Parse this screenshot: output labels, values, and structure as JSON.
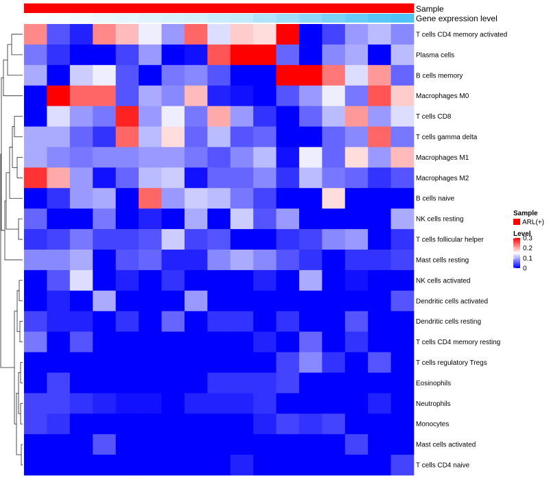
{
  "chart_data": {
    "type": "heatmap",
    "title": "",
    "columns": 17,
    "annotations": [
      {
        "name": "Sample",
        "value": "ARL(+)",
        "color": "#FF0000"
      },
      {
        "name": "Gene expression level",
        "color_low": "#FFFFFF",
        "color_high": "#4FC3F7"
      }
    ],
    "rows": [
      "T cells CD4 memory activated",
      "Plasma cells",
      "B cells memory",
      "Macrophages M0",
      "T cells CD8",
      "T cells gamma delta",
      "Macrophages M1",
      "Macrophages M2",
      "B cells naive",
      "NK cells resting",
      "T cells follicular helper",
      "Mast cells resting",
      "NK cells activated",
      "Dendritic cells activated",
      "Dendritic cells resting",
      "T cells CD4 memory resting",
      "T cells regulatory  Tregs",
      "Eosinophils",
      "Neutrophils",
      "Monocytes",
      "Mast cells activated",
      "T cells CD4 naive"
    ],
    "values": [
      [
        0.22,
        0.05,
        0.02,
        0.22,
        0.19,
        0.14,
        0.09,
        0.24,
        0.13,
        0.18,
        0.17,
        0.3,
        0.0,
        0.04,
        0.09,
        0.11,
        0.08
      ],
      [
        0.07,
        0.03,
        0.0,
        0.0,
        0.04,
        0.09,
        0.0,
        0.01,
        0.25,
        0.3,
        0.3,
        0.06,
        0.0,
        0.08,
        0.1,
        0.0,
        0.11
      ],
      [
        0.1,
        0.0,
        0.12,
        0.14,
        0.05,
        0.0,
        0.07,
        0.08,
        0.05,
        0.0,
        0.0,
        0.3,
        0.3,
        0.23,
        0.13,
        0.21,
        0.06
      ],
      [
        0.0,
        0.3,
        0.24,
        0.24,
        0.05,
        0.1,
        0.08,
        0.19,
        0.02,
        0.01,
        0.0,
        0.05,
        0.09,
        0.14,
        0.07,
        0.25,
        0.18
      ],
      [
        0.0,
        0.13,
        0.09,
        0.07,
        0.28,
        0.09,
        0.14,
        0.07,
        0.2,
        0.09,
        0.03,
        0.0,
        0.06,
        0.11,
        0.21,
        0.09,
        0.13
      ],
      [
        0.1,
        0.1,
        0.06,
        0.03,
        0.24,
        0.11,
        0.17,
        0.06,
        0.11,
        0.05,
        0.06,
        0.0,
        0.0,
        0.06,
        0.08,
        0.24,
        0.07
      ],
      [
        0.1,
        0.08,
        0.07,
        0.08,
        0.08,
        0.09,
        0.09,
        0.07,
        0.05,
        0.08,
        0.11,
        0.01,
        0.14,
        0.06,
        0.17,
        0.09,
        0.19
      ],
      [
        0.27,
        0.2,
        0.09,
        0.01,
        0.06,
        0.11,
        0.12,
        0.01,
        0.06,
        0.06,
        0.08,
        0.03,
        0.11,
        0.07,
        0.06,
        0.03,
        0.05
      ],
      [
        0.0,
        0.03,
        0.09,
        0.1,
        0.0,
        0.24,
        0.09,
        0.12,
        0.11,
        0.07,
        0.04,
        0.0,
        0.0,
        0.17,
        0.0,
        0.0,
        0.0
      ],
      [
        0.06,
        0.0,
        0.0,
        0.07,
        0.0,
        0.02,
        0.0,
        0.1,
        0.0,
        0.12,
        0.05,
        0.09,
        0.0,
        0.0,
        0.0,
        0.0,
        0.1
      ],
      [
        0.03,
        0.04,
        0.07,
        0.04,
        0.04,
        0.05,
        0.12,
        0.04,
        0.05,
        0.0,
        0.0,
        0.03,
        0.04,
        0.08,
        0.09,
        0.0,
        0.03
      ],
      [
        0.08,
        0.08,
        0.1,
        0.0,
        0.05,
        0.06,
        0.02,
        0.02,
        0.08,
        0.1,
        0.08,
        0.05,
        0.03,
        0.0,
        0.03,
        0.03,
        0.04
      ],
      [
        0.0,
        0.05,
        0.13,
        0.0,
        0.02,
        0.0,
        0.03,
        0.0,
        0.0,
        0.0,
        0.02,
        0.0,
        0.1,
        0.0,
        0.01,
        0.0,
        0.0
      ],
      [
        0.0,
        0.02,
        0.0,
        0.1,
        0.0,
        0.0,
        0.0,
        0.09,
        0.0,
        0.0,
        0.0,
        0.0,
        0.0,
        0.0,
        0.0,
        0.0,
        0.05
      ],
      [
        0.04,
        0.02,
        0.02,
        0.0,
        0.03,
        0.0,
        0.06,
        0.0,
        0.03,
        0.03,
        0.0,
        0.03,
        0.0,
        0.0,
        0.05,
        0.0,
        0.0
      ],
      [
        0.07,
        0.0,
        0.05,
        0.0,
        0.0,
        0.0,
        0.0,
        0.0,
        0.0,
        0.0,
        0.02,
        0.0,
        0.06,
        0.0,
        0.03,
        0.0,
        0.0
      ],
      [
        0.0,
        0.0,
        0.0,
        0.0,
        0.0,
        0.0,
        0.0,
        0.0,
        0.0,
        0.0,
        0.0,
        0.04,
        0.08,
        0.03,
        0.0,
        0.05,
        0.0
      ],
      [
        0.0,
        0.04,
        0.0,
        0.0,
        0.0,
        0.0,
        0.0,
        0.0,
        0.03,
        0.03,
        0.03,
        0.04,
        0.0,
        0.0,
        0.0,
        0.0,
        0.0
      ],
      [
        0.04,
        0.04,
        0.03,
        0.02,
        0.01,
        0.01,
        0.0,
        0.02,
        0.02,
        0.02,
        0.03,
        0.0,
        0.0,
        0.0,
        0.0,
        0.02,
        0.0
      ],
      [
        0.04,
        0.03,
        0.0,
        0.0,
        0.0,
        0.0,
        0.0,
        0.0,
        0.0,
        0.0,
        0.02,
        0.04,
        0.03,
        0.04,
        0.0,
        0.0,
        0.0
      ],
      [
        0.0,
        0.0,
        0.0,
        0.05,
        0.0,
        0.0,
        0.0,
        0.0,
        0.0,
        0.0,
        0.0,
        0.0,
        0.0,
        0.0,
        0.04,
        0.0,
        0.0
      ],
      [
        0.0,
        0.0,
        0.0,
        0.0,
        0.0,
        0.0,
        0.0,
        0.0,
        0.0,
        0.02,
        0.0,
        0.0,
        0.0,
        0.0,
        0.0,
        0.0,
        0.04
      ]
    ],
    "gene_expression_level": [
      0.02,
      0.05,
      0.08,
      0.12,
      0.15,
      0.18,
      0.22,
      0.25,
      0.3,
      0.35,
      0.45,
      0.55,
      0.65,
      0.75,
      0.85,
      0.95,
      1.0
    ],
    "legend": {
      "sample_title": "Sample",
      "sample_label": "ARL(+)",
      "level_title": "Level",
      "ticks": [
        0.3,
        0.2,
        0.1,
        0
      ],
      "range": [
        0,
        0.3
      ],
      "colors": {
        "low": "#0000FF",
        "mid": "#FFFFFF",
        "high": "#FF0000"
      }
    }
  }
}
